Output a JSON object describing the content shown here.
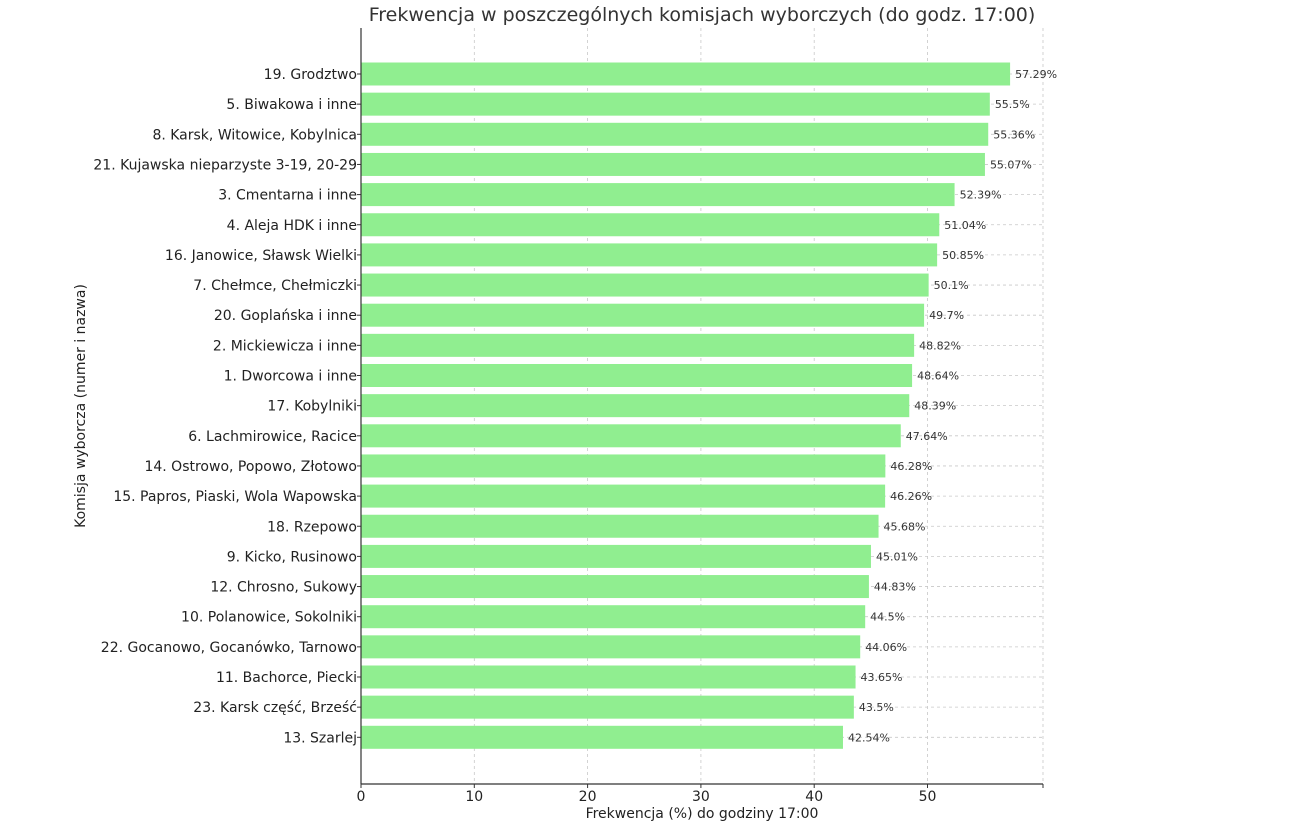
{
  "chart_data": {
    "type": "bar",
    "orientation": "horizontal",
    "title": "Frekwencja w poszczególnych komisjach wyborczych (do godz. 17:00)",
    "xlabel": "Frekwencja (%) do godziny 17:00",
    "ylabel": "Komisja wyborcza (numer i nazwa)",
    "xlim": [
      0,
      60
    ],
    "xticks": [
      0,
      10,
      20,
      30,
      40,
      50
    ],
    "xtick_labels": [
      "0",
      "10",
      "20",
      "30",
      "40",
      "50"
    ],
    "grid": true,
    "bar_color": "#90ee90",
    "categories": [
      "19. Grodztwo",
      "5. Biwakowa i inne",
      "8. Karsk, Witowice, Kobylnica",
      "21. Kujawska nieparzyste 3-19, 20-29",
      "3. Cmentarna i inne",
      "4. Aleja HDK i inne",
      "16. Janowice, Sławsk Wielki",
      "7. Chełmce, Chełmiczki",
      "20. Goplańska i inne",
      "2. Mickiewicza i inne",
      "1. Dworcowa i inne",
      "17. Kobylniki",
      "6. Lachmirowice, Racice",
      "14. Ostrowo, Popowo, Złotowo",
      "15. Papros, Piaski, Wola Wapowska",
      "18. Rzepowo",
      "9. Kicko, Rusinowo",
      "12. Chrosno, Sukowy",
      "10. Polanowice, Sokolniki",
      "22. Gocanowo, Gocanówko, Tarnowo",
      "11. Bachorce, Piecki",
      "23. Karsk część, Brześć",
      "13. Szarlej"
    ],
    "values": [
      57.29,
      55.5,
      55.36,
      55.07,
      52.39,
      51.04,
      50.85,
      50.1,
      49.7,
      48.82,
      48.64,
      48.39,
      47.64,
      46.28,
      46.26,
      45.68,
      45.01,
      44.83,
      44.5,
      44.06,
      43.65,
      43.5,
      42.54
    ],
    "value_labels": [
      "57.29%",
      "55.5%",
      "55.36%",
      "55.07%",
      "52.39%",
      "51.04%",
      "50.85%",
      "50.1%",
      "49.7%",
      "48.82%",
      "48.64%",
      "48.39%",
      "47.64%",
      "46.28%",
      "46.26%",
      "45.68%",
      "45.01%",
      "44.83%",
      "44.5%",
      "44.06%",
      "43.65%",
      "43.5%",
      "42.54%"
    ]
  }
}
